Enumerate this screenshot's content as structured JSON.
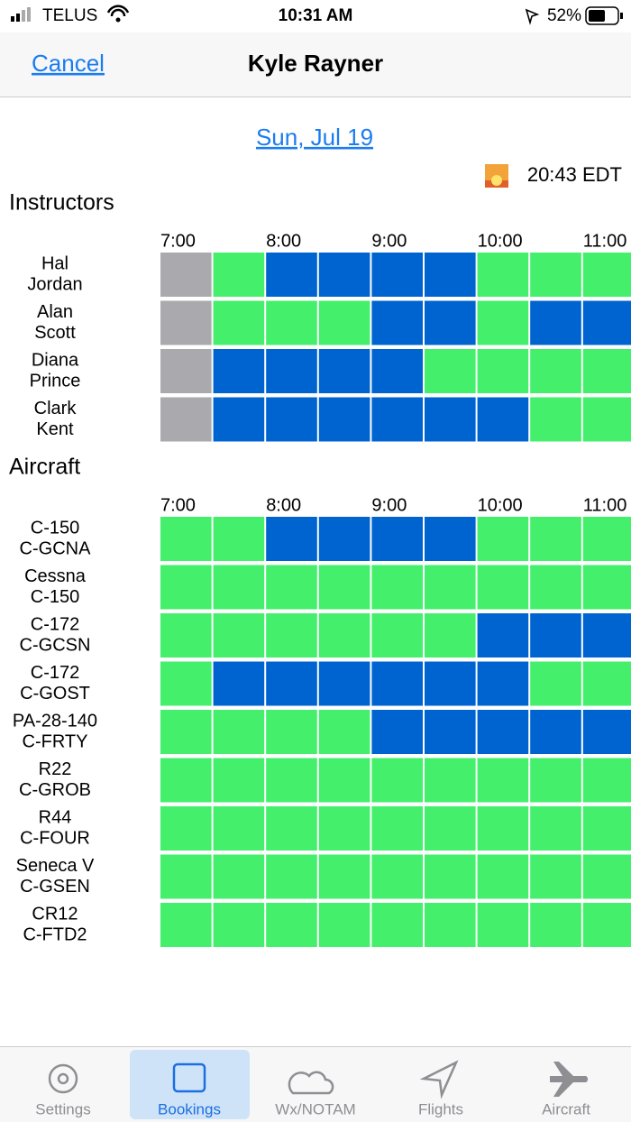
{
  "status_bar": {
    "carrier": "TELUS",
    "time": "10:31 AM",
    "battery": "52%"
  },
  "nav": {
    "cancel": "Cancel",
    "title": "Kyle Rayner"
  },
  "date": "Sun, Jul 19",
  "sunset": "20:43 EDT",
  "sections": [
    {
      "title": "Instructors",
      "times": [
        "7:00",
        "8:00",
        "9:00",
        "10:00",
        "11:00"
      ],
      "rows": [
        {
          "lines": [
            "Hal",
            "Jordan"
          ],
          "slots": [
            "#a9a9ae",
            "#43ef6b",
            "#0064d0",
            "#0064d0",
            "#0064d0",
            "#0064d0",
            "#43ef6b",
            "#43ef6b",
            "#43ef6b"
          ]
        },
        {
          "lines": [
            "Alan",
            "Scott"
          ],
          "slots": [
            "#a9a9ae",
            "#43ef6b",
            "#43ef6b",
            "#43ef6b",
            "#0064d0",
            "#0064d0",
            "#43ef6b",
            "#0064d0",
            "#0064d0"
          ]
        },
        {
          "lines": [
            "Diana",
            "Prince"
          ],
          "slots": [
            "#a9a9ae",
            "#0064d0",
            "#0064d0",
            "#0064d0",
            "#0064d0",
            "#43ef6b",
            "#43ef6b",
            "#43ef6b",
            "#43ef6b"
          ]
        },
        {
          "lines": [
            "Clark",
            "Kent"
          ],
          "slots": [
            "#a9a9ae",
            "#0064d0",
            "#0064d0",
            "#0064d0",
            "#0064d0",
            "#0064d0",
            "#0064d0",
            "#43ef6b",
            "#43ef6b"
          ]
        }
      ]
    },
    {
      "title": "Aircraft",
      "times": [
        "7:00",
        "8:00",
        "9:00",
        "10:00",
        "11:00"
      ],
      "rows": [
        {
          "lines": [
            "C-150",
            "C-GCNA"
          ],
          "slots": [
            "#43ef6b",
            "#43ef6b",
            "#0064d0",
            "#0064d0",
            "#0064d0",
            "#0064d0",
            "#43ef6b",
            "#43ef6b",
            "#43ef6b"
          ]
        },
        {
          "lines": [
            "Cessna",
            "C-150"
          ],
          "slots": [
            "#43ef6b",
            "#43ef6b",
            "#43ef6b",
            "#43ef6b",
            "#43ef6b",
            "#43ef6b",
            "#43ef6b",
            "#43ef6b",
            "#43ef6b"
          ]
        },
        {
          "lines": [
            "C-172",
            "C-GCSN"
          ],
          "slots": [
            "#43ef6b",
            "#43ef6b",
            "#43ef6b",
            "#43ef6b",
            "#43ef6b",
            "#43ef6b",
            "#0064d0",
            "#0064d0",
            "#0064d0"
          ]
        },
        {
          "lines": [
            "C-172",
            "C-GOST"
          ],
          "slots": [
            "#43ef6b",
            "#0064d0",
            "#0064d0",
            "#0064d0",
            "#0064d0",
            "#0064d0",
            "#0064d0",
            "#43ef6b",
            "#43ef6b"
          ]
        },
        {
          "lines": [
            "PA-28-140",
            "C-FRTY"
          ],
          "slots": [
            "#43ef6b",
            "#43ef6b",
            "#43ef6b",
            "#43ef6b",
            "#0064d0",
            "#0064d0",
            "#0064d0",
            "#0064d0",
            "#0064d0"
          ]
        },
        {
          "lines": [
            "R22",
            "C-GROB"
          ],
          "slots": [
            "#43ef6b",
            "#43ef6b",
            "#43ef6b",
            "#43ef6b",
            "#43ef6b",
            "#43ef6b",
            "#43ef6b",
            "#43ef6b",
            "#43ef6b"
          ]
        },
        {
          "lines": [
            "R44",
            "C-FOUR"
          ],
          "slots": [
            "#43ef6b",
            "#43ef6b",
            "#43ef6b",
            "#43ef6b",
            "#43ef6b",
            "#43ef6b",
            "#43ef6b",
            "#43ef6b",
            "#43ef6b"
          ]
        },
        {
          "lines": [
            "Seneca V",
            "C-GSEN"
          ],
          "slots": [
            "#43ef6b",
            "#43ef6b",
            "#43ef6b",
            "#43ef6b",
            "#43ef6b",
            "#43ef6b",
            "#43ef6b",
            "#43ef6b",
            "#43ef6b"
          ]
        },
        {
          "lines": [
            "CR12",
            "C-FTD2"
          ],
          "slots": [
            "#43ef6b",
            "#43ef6b",
            "#43ef6b",
            "#43ef6b",
            "#43ef6b",
            "#43ef6b",
            "#43ef6b",
            "#43ef6b",
            "#43ef6b"
          ]
        }
      ]
    }
  ],
  "tabs": [
    "Settings",
    "Bookings",
    "Wx/NOTAM",
    "Flights",
    "Aircraft"
  ]
}
